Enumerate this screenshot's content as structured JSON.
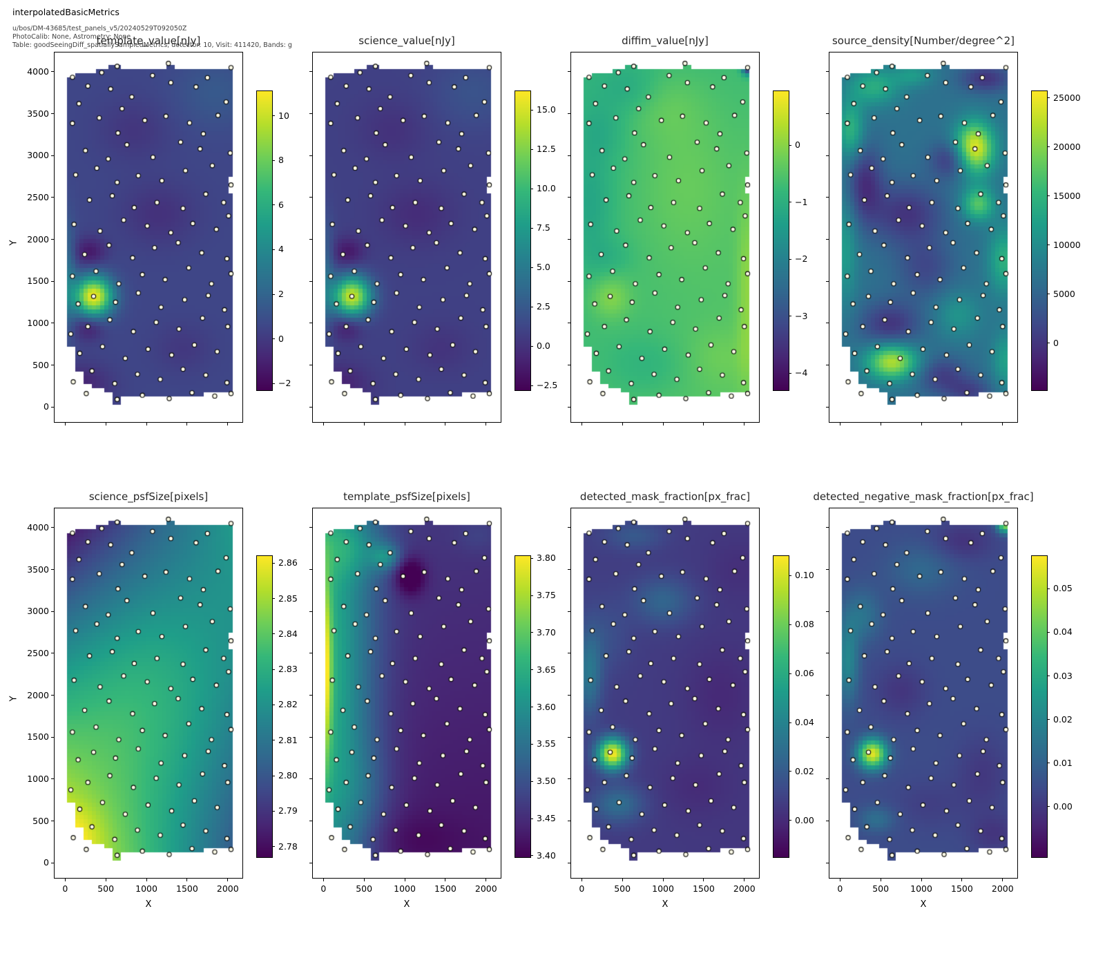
{
  "header": {
    "suptitle": "interpolatedBasicMetrics",
    "line1": "u/bos/DM-43685/test_panels_v5/20240529T092050Z",
    "line2": "PhotoCalib: None, Astrometry: None",
    "line3": "Table: goodSeeingDiff_spatiallySampledMetrics, detector: 10, Visit: 411420, Bands: g"
  },
  "axes": {
    "xlabel": "X",
    "ylabel": "Y",
    "xlim": [
      -130,
      2180
    ],
    "ylim": [
      -180,
      4230
    ],
    "x_tick_values": [
      0,
      500,
      1000,
      1500,
      2000
    ],
    "x_tick_labels": [
      "0",
      "500",
      "1000",
      "1500",
      "2000"
    ],
    "y_tick_values": [
      0,
      500,
      1000,
      1500,
      2000,
      2500,
      3000,
      3500,
      4000
    ],
    "y_tick_labels": [
      "0",
      "500",
      "1000",
      "1500",
      "2000",
      "2500",
      "3000",
      "3500",
      "4000"
    ]
  },
  "colors": {
    "point_fill": "#fdfbe6",
    "point_edge": "#000000",
    "viridis_stops": [
      [
        68,
        1,
        84
      ],
      [
        71,
        39,
        117
      ],
      [
        62,
        73,
        137
      ],
      [
        49,
        104,
        142
      ],
      [
        38,
        130,
        142
      ],
      [
        31,
        158,
        137
      ],
      [
        53,
        183,
        121
      ],
      [
        110,
        206,
        88
      ],
      [
        181,
        222,
        43
      ],
      [
        253,
        231,
        37
      ]
    ]
  },
  "footprint": {
    "x_range": [
      18,
      2055
    ],
    "bottom_steps": [
      [
        110,
        700
      ],
      [
        250,
        430
      ],
      [
        350,
        280
      ],
      [
        480,
        200
      ],
      [
        600,
        170
      ],
      [
        680,
        45
      ],
      [
        1500,
        115
      ],
      [
        1700,
        140
      ],
      [
        2056,
        155
      ]
    ],
    "top_steps": [
      [
        150,
        3945
      ],
      [
        380,
        3985
      ],
      [
        550,
        4045
      ],
      [
        660,
        4095
      ],
      [
        1230,
        4045
      ],
      [
        1330,
        4100
      ],
      [
        2056,
        4045
      ]
    ],
    "notches": [
      {
        "x": [
          2000,
          2056
        ],
        "y": [
          2560,
          2730
        ]
      }
    ]
  },
  "points": [
    [
      90,
      3935
    ],
    [
      450,
      3990
    ],
    [
      640,
      4065
    ],
    [
      1075,
      3955
    ],
    [
      1270,
      4100
    ],
    [
      1750,
      3930
    ],
    [
      2040,
      4050
    ],
    [
      280,
      3830
    ],
    [
      560,
      3795
    ],
    [
      820,
      3700
    ],
    [
      1300,
      3870
    ],
    [
      1610,
      3820
    ],
    [
      1980,
      3640
    ],
    [
      170,
      3620
    ],
    [
      700,
      3560
    ],
    [
      90,
      3385
    ],
    [
      420,
      3450
    ],
    [
      980,
      3420
    ],
    [
      1240,
      3470
    ],
    [
      1530,
      3390
    ],
    [
      1880,
      3480
    ],
    [
      650,
      3270
    ],
    [
      1700,
      3260
    ],
    [
      250,
      3060
    ],
    [
      760,
      3130
    ],
    [
      1080,
      2980
    ],
    [
      1420,
      3160
    ],
    [
      1660,
      3080
    ],
    [
      2030,
      3030
    ],
    [
      530,
      2960
    ],
    [
      130,
      2770
    ],
    [
      390,
      2850
    ],
    [
      900,
      2760
    ],
    [
      1190,
      2700
    ],
    [
      1480,
      2820
    ],
    [
      1810,
      2880
    ],
    [
      2040,
      2650
    ],
    [
      640,
      2680
    ],
    [
      300,
      2470
    ],
    [
      580,
      2520
    ],
    [
      850,
      2380
    ],
    [
      1130,
      2440
    ],
    [
      1450,
      2370
    ],
    [
      1730,
      2540
    ],
    [
      1950,
      2440
    ],
    [
      110,
      2180
    ],
    [
      430,
      2100
    ],
    [
      720,
      2230
    ],
    [
      1010,
      2160
    ],
    [
      1300,
      2080
    ],
    [
      1570,
      2190
    ],
    [
      1860,
      2120
    ],
    [
      2010,
      2280
    ],
    [
      240,
      1820
    ],
    [
      540,
      1930
    ],
    [
      830,
      1780
    ],
    [
      1100,
      1900
    ],
    [
      1390,
      1960
    ],
    [
      1680,
      1840
    ],
    [
      1990,
      1770
    ],
    [
      90,
      1560
    ],
    [
      380,
      1620
    ],
    [
      660,
      1470
    ],
    [
      950,
      1580
    ],
    [
      1230,
      1520
    ],
    [
      1520,
      1660
    ],
    [
      1800,
      1470
    ],
    [
      2040,
      1590
    ],
    [
      350,
      1320
    ],
    [
      160,
      1230
    ],
    [
      620,
      1250
    ],
    [
      900,
      1360
    ],
    [
      1180,
      1190
    ],
    [
      1470,
      1280
    ],
    [
      1760,
      1330
    ],
    [
      1960,
      1160
    ],
    [
      280,
      960
    ],
    [
      70,
      870
    ],
    [
      550,
      1040
    ],
    [
      840,
      900
    ],
    [
      1120,
      1010
    ],
    [
      1400,
      930
    ],
    [
      1690,
      1060
    ],
    [
      2000,
      960
    ],
    [
      180,
      640
    ],
    [
      460,
      720
    ],
    [
      740,
      580
    ],
    [
      1020,
      690
    ],
    [
      1310,
      620
    ],
    [
      1590,
      740
    ],
    [
      1870,
      660
    ],
    [
      100,
      300
    ],
    [
      330,
      430
    ],
    [
      610,
      280
    ],
    [
      890,
      390
    ],
    [
      1170,
      330
    ],
    [
      1450,
      450
    ],
    [
      1730,
      380
    ],
    [
      1990,
      290
    ],
    [
      640,
      90
    ],
    [
      260,
      160
    ],
    [
      950,
      140
    ],
    [
      1280,
      100
    ],
    [
      1560,
      170
    ],
    [
      1840,
      130
    ],
    [
      2040,
      160
    ]
  ],
  "chart_data": [
    {
      "type": "heatmap",
      "title": "template_value[nJy]",
      "colorbar": {
        "vmin": -2.3,
        "vmax": 11.1,
        "tick_values": [
          -2,
          0,
          2,
          4,
          6,
          8,
          10
        ],
        "tick_labels": [
          "−2",
          "0",
          "2",
          "4",
          "6",
          "8",
          "10"
        ]
      },
      "field": {
        "linear": [
          0.55,
          0,
          0,
          0
        ],
        "features": [
          [
            350,
            1320,
            165,
            165,
            10.3
          ],
          [
            300,
            1850,
            140,
            120,
            -1.9
          ],
          [
            290,
            950,
            130,
            110,
            -1.7
          ],
          [
            200,
            260,
            260,
            180,
            -1.4
          ],
          [
            1150,
            2300,
            320,
            260,
            -0.9
          ],
          [
            35,
            1550,
            70,
            450,
            2.2
          ],
          [
            1850,
            3750,
            350,
            300,
            0.9
          ],
          [
            1450,
            700,
            250,
            200,
            -0.6
          ],
          [
            850,
            3300,
            300,
            250,
            -0.7
          ]
        ]
      }
    },
    {
      "type": "heatmap",
      "title": "science_value[nJy]",
      "colorbar": {
        "vmin": -2.8,
        "vmax": 16.2,
        "tick_values": [
          -2.5,
          0,
          2.5,
          5,
          7.5,
          10,
          12.5,
          15
        ],
        "tick_labels": [
          "−2.5",
          "0.0",
          "2.5",
          "5.0",
          "7.5",
          "10.0",
          "12.5",
          "15.0"
        ]
      },
      "field": {
        "linear": [
          0.9,
          0,
          0,
          0
        ],
        "features": [
          [
            350,
            1320,
            165,
            165,
            13.8
          ],
          [
            300,
            1850,
            140,
            120,
            -2.4
          ],
          [
            290,
            950,
            130,
            110,
            -2.2
          ],
          [
            200,
            260,
            260,
            180,
            -1.8
          ],
          [
            1150,
            2300,
            320,
            260,
            -1.2
          ],
          [
            35,
            1550,
            70,
            450,
            2.8
          ],
          [
            1850,
            3750,
            350,
            300,
            1.2
          ],
          [
            1450,
            700,
            250,
            200,
            -0.8
          ],
          [
            850,
            3300,
            300,
            250,
            -0.9
          ]
        ]
      }
    },
    {
      "type": "heatmap",
      "title": "diffim_value[nJy]",
      "colorbar": {
        "vmin": -4.3,
        "vmax": 0.95,
        "tick_values": [
          0,
          -1,
          -2,
          -3,
          -4
        ],
        "tick_labels": [
          "0",
          "−1",
          "−2",
          "−3",
          "−4"
        ]
      },
      "field": {
        "linear": [
          -0.62,
          0.2,
          -0.28,
          0
        ],
        "features": [
          [
            350,
            1300,
            170,
            170,
            0.62
          ],
          [
            2035,
            1400,
            90,
            800,
            0.55
          ],
          [
            1250,
            2700,
            450,
            700,
            0.38
          ],
          [
            1000,
            3600,
            350,
            300,
            0.3
          ],
          [
            600,
            3800,
            250,
            200,
            -0.35
          ],
          [
            2040,
            4060,
            50,
            60,
            -3.3
          ],
          [
            120,
            2400,
            180,
            500,
            -0.45
          ],
          [
            800,
            500,
            350,
            250,
            -0.3
          ],
          [
            350,
            1800,
            200,
            150,
            -0.25
          ],
          [
            1700,
            600,
            300,
            250,
            0.25
          ],
          [
            250,
            3300,
            200,
            250,
            -0.3
          ]
        ]
      }
    },
    {
      "type": "heatmap",
      "title": "source_density[Number/degree^2]",
      "colorbar": {
        "vmin": -4800,
        "vmax": 25700,
        "tick_values": [
          0,
          5000,
          10000,
          15000,
          20000,
          25000
        ],
        "tick_labels": [
          "0",
          "5000",
          "10000",
          "15000",
          "20000",
          "25000"
        ]
      },
      "field": {
        "linear": [
          6500,
          0,
          0,
          0
        ],
        "features": [
          [
            1650,
            3080,
            170,
            220,
            19500
          ],
          [
            1700,
            2420,
            140,
            140,
            11000
          ],
          [
            640,
            540,
            220,
            150,
            16000
          ],
          [
            420,
            3820,
            220,
            160,
            7500
          ],
          [
            130,
            3300,
            120,
            250,
            8500
          ],
          [
            2020,
            1750,
            140,
            280,
            8000
          ],
          [
            60,
            1900,
            110,
            500,
            5500
          ],
          [
            900,
            3960,
            170,
            100,
            5000
          ],
          [
            1450,
            1100,
            200,
            200,
            4500
          ],
          [
            2040,
            550,
            120,
            250,
            6000
          ],
          [
            1400,
            2950,
            190,
            160,
            -7500
          ],
          [
            820,
            2300,
            320,
            260,
            -6500
          ],
          [
            300,
            2680,
            160,
            320,
            -7000
          ],
          [
            620,
            980,
            260,
            200,
            -6500
          ],
          [
            1250,
            380,
            220,
            160,
            -5500
          ],
          [
            1790,
            3920,
            220,
            120,
            -6500
          ],
          [
            1050,
            1650,
            250,
            250,
            -4500
          ],
          [
            1600,
            180,
            200,
            120,
            -5000
          ]
        ]
      }
    },
    {
      "type": "heatmap",
      "title": "science_psfSize[pixels]",
      "colorbar": {
        "vmin": 2.777,
        "vmax": 2.862,
        "tick_values": [
          2.86,
          2.85,
          2.84,
          2.83,
          2.82,
          2.81,
          2.8,
          2.79,
          2.78
        ],
        "tick_labels": [
          "2.86",
          "2.85",
          "2.84",
          "2.83",
          "2.82",
          "2.81",
          "2.80",
          "2.79",
          "2.78"
        ]
      },
      "field": {
        "linear": [
          2.865,
          -0.065,
          -0.087,
          0.109
        ],
        "features": [
          [
            1000,
            2100,
            800,
            1000,
            0.016
          ],
          [
            120,
            350,
            250,
            250,
            0.008
          ]
        ]
      }
    },
    {
      "type": "heatmap",
      "title": "template_psfSize[pixels]",
      "colorbar": {
        "vmin": 3.398,
        "vmax": 3.803,
        "tick_values": [
          3.8,
          3.75,
          3.7,
          3.65,
          3.6,
          3.55,
          3.5,
          3.45,
          3.4
        ],
        "tick_labels": [
          "3.80",
          "3.75",
          "3.70",
          "3.65",
          "3.60",
          "3.55",
          "3.50",
          "3.45",
          "3.40"
        ]
      },
      "field": {
        "linear": [
          3.425,
          -0.005,
          0.04,
          0
        ],
        "features": [
          [
            0,
            2000,
            420,
            2600,
            0.21
          ],
          [
            25,
            2300,
            55,
            800,
            0.16
          ],
          [
            350,
            3750,
            300,
            250,
            0.06
          ],
          [
            770,
            3650,
            130,
            110,
            0.1
          ],
          [
            1060,
            3420,
            130,
            160,
            -0.1
          ],
          [
            500,
            900,
            250,
            400,
            0.03
          ],
          [
            1900,
            3900,
            200,
            150,
            0.02
          ],
          [
            1100,
            300,
            400,
            200,
            -0.02
          ]
        ]
      }
    },
    {
      "type": "heatmap",
      "title": "detected_mask_fraction[px_frac]",
      "colorbar": {
        "vmin": -0.015,
        "vmax": 0.108,
        "tick_values": [
          0.1,
          0.08,
          0.06,
          0.04,
          0.02,
          0.0
        ],
        "tick_labels": [
          "0.10",
          "0.08",
          "0.06",
          "0.04",
          "0.02",
          "0.00"
        ]
      },
      "field": {
        "linear": [
          0.007,
          -0.002,
          0.001,
          0
        ],
        "features": [
          [
            380,
            1300,
            130,
            130,
            0.1
          ],
          [
            1000,
            3120,
            260,
            200,
            0.018
          ],
          [
            90,
            2250,
            110,
            350,
            0.026
          ],
          [
            450,
            700,
            220,
            160,
            0.022
          ],
          [
            650,
            3900,
            250,
            120,
            0.012
          ],
          [
            1700,
            2000,
            300,
            400,
            -0.006
          ],
          [
            1400,
            900,
            300,
            250,
            -0.005
          ],
          [
            300,
            2700,
            200,
            300,
            0.008
          ],
          [
            1900,
            3500,
            250,
            250,
            -0.004
          ]
        ]
      }
    },
    {
      "type": "heatmap",
      "title": "detected_negative_mask_fraction[px_frac]",
      "colorbar": {
        "vmin": -0.0116,
        "vmax": 0.0575,
        "tick_values": [
          0.05,
          0.04,
          0.03,
          0.02,
          0.01,
          0.0
        ],
        "tick_labels": [
          "0.05",
          "0.04",
          "0.03",
          "0.02",
          "0.01",
          "0.00"
        ]
      },
      "field": {
        "linear": [
          0.0045,
          0,
          0,
          0
        ],
        "features": [
          [
            400,
            1300,
            125,
            125,
            0.05
          ],
          [
            2030,
            4040,
            70,
            70,
            0.042
          ],
          [
            90,
            2400,
            100,
            350,
            0.016
          ],
          [
            280,
            2950,
            160,
            220,
            0.01
          ],
          [
            1000,
            3500,
            300,
            220,
            0.007
          ],
          [
            450,
            520,
            160,
            110,
            0.009
          ],
          [
            1500,
            3830,
            260,
            160,
            -0.006
          ],
          [
            750,
            2050,
            220,
            220,
            -0.005
          ],
          [
            1750,
            1050,
            220,
            320,
            -0.0045
          ],
          [
            1900,
            350,
            220,
            160,
            -0.005
          ],
          [
            1100,
            700,
            300,
            200,
            -0.003
          ]
        ]
      }
    }
  ],
  "layout_note": ""
}
